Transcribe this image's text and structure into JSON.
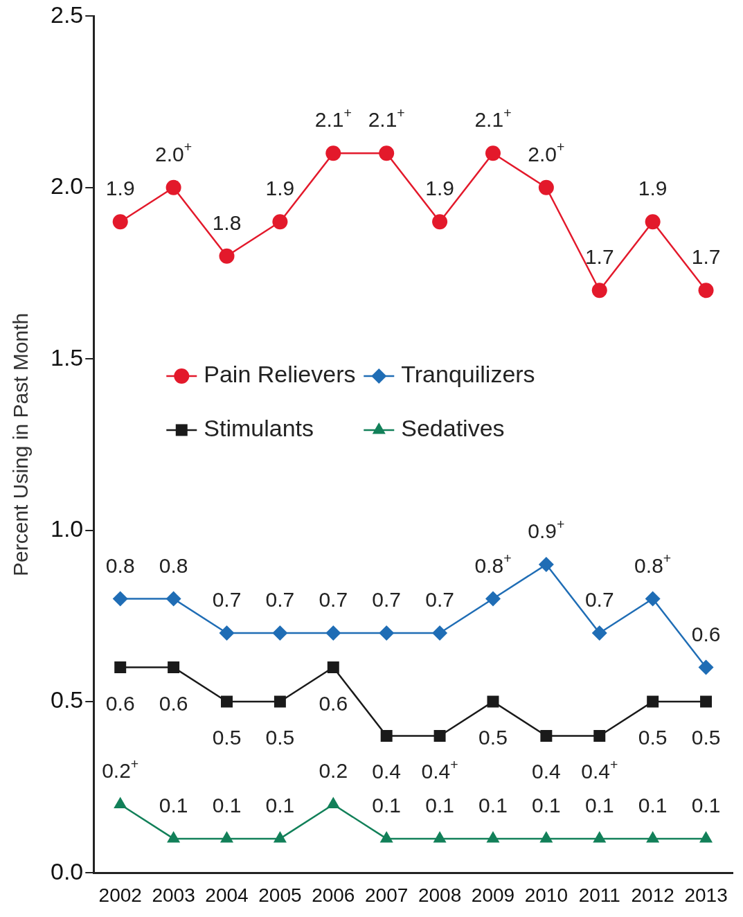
{
  "chart_data": {
    "type": "line",
    "ylabel": "Percent Using in Past Month",
    "categories": [
      "2002",
      "2003",
      "2004",
      "2005",
      "2006",
      "2007",
      "2008",
      "2009",
      "2010",
      "2011",
      "2012",
      "2013"
    ],
    "ylim": [
      0,
      2.5
    ],
    "yticks": [
      {
        "value": 0,
        "label": "0.0"
      },
      {
        "value": 0.5,
        "label": "0.5"
      },
      {
        "value": 1,
        "label": "1.0"
      },
      {
        "value": 1.5,
        "label": "1.5"
      },
      {
        "value": 2,
        "label": "2.0"
      },
      {
        "value": 2.5,
        "label": "2.5"
      }
    ],
    "grid": false,
    "legend": "center left",
    "series": [
      {
        "name": "Pain Relievers",
        "color": "#e3192b",
        "marker": "circle",
        "values": [
          1.9,
          2.0,
          1.8,
          1.9,
          2.1,
          2.1,
          1.9,
          2.1,
          2.0,
          1.7,
          1.9,
          1.7
        ],
        "value_labels": [
          "1.9",
          "2.0$^{+}$",
          "1.8",
          "1.9",
          "2.1$^{+}$",
          "2.1$^{+}$",
          "1.9",
          "2.1$^{+}$",
          "2.0$^{+}$",
          "1.7",
          "1.9",
          "1.7"
        ]
      },
      {
        "name": "Tranquilizers",
        "color": "#1f6db5",
        "marker": "diamond",
        "values": [
          0.8,
          0.8,
          0.7,
          0.7,
          0.7,
          0.7,
          0.7,
          0.8,
          0.9,
          0.7,
          0.8,
          0.6
        ],
        "value_labels": [
          "0.8",
          "0.8",
          "0.7",
          "0.7",
          "0.7",
          "0.7",
          "0.7",
          "0.8$^{+}$",
          "0.9$^{+}$",
          "0.7",
          "0.8$^{+}$",
          "0.6"
        ]
      },
      {
        "name": "Stimulants",
        "color": "#1a1a1a",
        "marker": "square",
        "values": [
          0.6,
          0.6,
          0.5,
          0.5,
          0.6,
          0.4,
          0.4,
          0.5,
          0.4,
          0.4,
          0.5,
          0.5
        ],
        "value_labels": [
          "0.6",
          "0.6",
          "0.5",
          "0.5",
          "0.6",
          "0.4",
          "0.4$^{+}$",
          "0.5",
          "0.4",
          "0.4$^{+}$",
          "0.5",
          "0.5"
        ]
      },
      {
        "name": "Sedatives",
        "color": "#128059",
        "marker": "triangle",
        "values": [
          0.2,
          0.1,
          0.1,
          0.1,
          0.2,
          0.1,
          0.1,
          0.1,
          0.1,
          0.1,
          0.1,
          0.1
        ],
        "value_labels": [
          "0.2$^{+}$",
          "0.1",
          "0.1",
          "0.1",
          "0.2",
          "0.1",
          "0.1",
          "0.1",
          "0.1",
          "0.1",
          "0.1",
          "0.1"
        ]
      }
    ]
  }
}
